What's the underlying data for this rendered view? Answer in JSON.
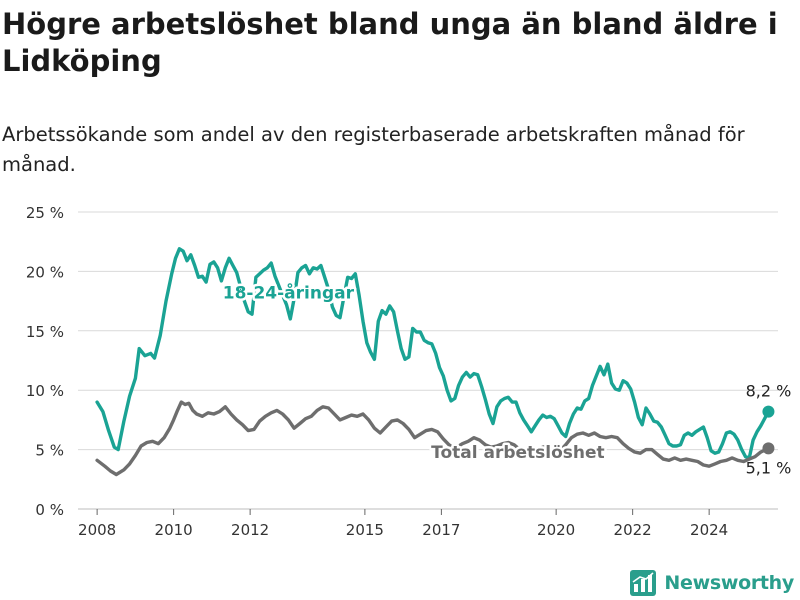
{
  "title": "Högre arbetslöshet bland unga än bland äldre i Lidköping",
  "subtitle": "Arbetssökande som andel av den registerbaserade arbetskraften månad för månad.",
  "brand": {
    "name": "Newsworthy",
    "color": "#2a9e8c"
  },
  "chart_data": {
    "type": "line",
    "ylim": [
      0,
      25
    ],
    "xlim": [
      2007.5,
      2025.8
    ],
    "grid": true,
    "y_ticks": [
      0,
      5,
      10,
      15,
      20,
      25
    ],
    "y_tick_labels": [
      "0 %",
      "5 %",
      "10 %",
      "15 %",
      "20 %",
      "25 %"
    ],
    "x_ticks": [
      2008,
      2010,
      2012,
      2015,
      2017,
      2020,
      2022,
      2024
    ],
    "x_tick_labels": [
      "2008",
      "2010",
      "2012",
      "2015",
      "2017",
      "2020",
      "2022",
      "2024"
    ],
    "series": [
      {
        "name": "18-24-åringar",
        "color": "#1aa394",
        "end_label": "8,2 %",
        "points": [
          [
            2008.0,
            9.0
          ],
          [
            2008.15,
            8.2
          ],
          [
            2008.3,
            6.6
          ],
          [
            2008.45,
            5.2
          ],
          [
            2008.55,
            5.0
          ],
          [
            2008.7,
            7.4
          ],
          [
            2008.85,
            9.5
          ],
          [
            2009.0,
            11.0
          ],
          [
            2009.1,
            13.5
          ],
          [
            2009.25,
            12.9
          ],
          [
            2009.4,
            13.1
          ],
          [
            2009.5,
            12.7
          ],
          [
            2009.65,
            14.6
          ],
          [
            2009.8,
            17.5
          ],
          [
            2009.95,
            19.8
          ],
          [
            2010.05,
            21.1
          ],
          [
            2010.15,
            21.9
          ],
          [
            2010.25,
            21.7
          ],
          [
            2010.35,
            20.9
          ],
          [
            2010.45,
            21.4
          ],
          [
            2010.55,
            20.5
          ],
          [
            2010.65,
            19.5
          ],
          [
            2010.75,
            19.6
          ],
          [
            2010.85,
            19.1
          ],
          [
            2010.95,
            20.6
          ],
          [
            2011.05,
            20.8
          ],
          [
            2011.15,
            20.3
          ],
          [
            2011.25,
            19.2
          ],
          [
            2011.35,
            20.3
          ],
          [
            2011.45,
            21.1
          ],
          [
            2011.55,
            20.5
          ],
          [
            2011.65,
            19.9
          ],
          [
            2011.75,
            18.7
          ],
          [
            2011.85,
            17.5
          ],
          [
            2011.95,
            16.6
          ],
          [
            2012.05,
            16.4
          ],
          [
            2012.15,
            19.5
          ],
          [
            2012.25,
            19.8
          ],
          [
            2012.35,
            20.1
          ],
          [
            2012.45,
            20.3
          ],
          [
            2012.55,
            20.7
          ],
          [
            2012.65,
            19.6
          ],
          [
            2012.75,
            18.8
          ],
          [
            2012.85,
            18.0
          ],
          [
            2012.95,
            17.2
          ],
          [
            2013.05,
            16.0
          ],
          [
            2013.15,
            17.7
          ],
          [
            2013.25,
            19.9
          ],
          [
            2013.35,
            20.3
          ],
          [
            2013.45,
            20.5
          ],
          [
            2013.55,
            19.8
          ],
          [
            2013.65,
            20.3
          ],
          [
            2013.75,
            20.2
          ],
          [
            2013.85,
            20.5
          ],
          [
            2013.95,
            19.5
          ],
          [
            2014.05,
            18.5
          ],
          [
            2014.15,
            17.0
          ],
          [
            2014.25,
            16.3
          ],
          [
            2014.35,
            16.1
          ],
          [
            2014.45,
            17.8
          ],
          [
            2014.55,
            19.5
          ],
          [
            2014.65,
            19.4
          ],
          [
            2014.75,
            19.8
          ],
          [
            2014.85,
            18.0
          ],
          [
            2014.95,
            15.8
          ],
          [
            2015.05,
            14.0
          ],
          [
            2015.15,
            13.2
          ],
          [
            2015.25,
            12.6
          ],
          [
            2015.35,
            15.8
          ],
          [
            2015.45,
            16.7
          ],
          [
            2015.55,
            16.4
          ],
          [
            2015.65,
            17.1
          ],
          [
            2015.75,
            16.6
          ],
          [
            2015.85,
            15.0
          ],
          [
            2015.95,
            13.5
          ],
          [
            2016.05,
            12.6
          ],
          [
            2016.15,
            12.8
          ],
          [
            2016.25,
            15.2
          ],
          [
            2016.35,
            14.9
          ],
          [
            2016.45,
            14.9
          ],
          [
            2016.55,
            14.2
          ],
          [
            2016.65,
            14.0
          ],
          [
            2016.75,
            13.9
          ],
          [
            2016.85,
            13.1
          ],
          [
            2016.95,
            11.9
          ],
          [
            2017.05,
            11.2
          ],
          [
            2017.15,
            10.0
          ],
          [
            2017.25,
            9.1
          ],
          [
            2017.35,
            9.3
          ],
          [
            2017.45,
            10.4
          ],
          [
            2017.55,
            11.1
          ],
          [
            2017.65,
            11.5
          ],
          [
            2017.75,
            11.1
          ],
          [
            2017.85,
            11.4
          ],
          [
            2017.95,
            11.3
          ],
          [
            2018.05,
            10.3
          ],
          [
            2018.15,
            9.2
          ],
          [
            2018.25,
            8.0
          ],
          [
            2018.35,
            7.2
          ],
          [
            2018.45,
            8.6
          ],
          [
            2018.55,
            9.1
          ],
          [
            2018.65,
            9.3
          ],
          [
            2018.75,
            9.4
          ],
          [
            2018.85,
            9.0
          ],
          [
            2018.95,
            9.0
          ],
          [
            2019.05,
            8.1
          ],
          [
            2019.15,
            7.5
          ],
          [
            2019.25,
            7.0
          ],
          [
            2019.35,
            6.5
          ],
          [
            2019.45,
            7.0
          ],
          [
            2019.55,
            7.5
          ],
          [
            2019.65,
            7.9
          ],
          [
            2019.75,
            7.7
          ],
          [
            2019.85,
            7.8
          ],
          [
            2019.95,
            7.6
          ],
          [
            2020.05,
            7.0
          ],
          [
            2020.15,
            6.4
          ],
          [
            2020.25,
            6.1
          ],
          [
            2020.35,
            7.2
          ],
          [
            2020.45,
            8.0
          ],
          [
            2020.55,
            8.5
          ],
          [
            2020.65,
            8.4
          ],
          [
            2020.75,
            9.1
          ],
          [
            2020.85,
            9.3
          ],
          [
            2020.95,
            10.4
          ],
          [
            2021.05,
            11.2
          ],
          [
            2021.15,
            12.0
          ],
          [
            2021.25,
            11.3
          ],
          [
            2021.35,
            12.2
          ],
          [
            2021.45,
            10.6
          ],
          [
            2021.55,
            10.1
          ],
          [
            2021.65,
            10.0
          ],
          [
            2021.75,
            10.8
          ],
          [
            2021.85,
            10.6
          ],
          [
            2021.95,
            10.1
          ],
          [
            2022.05,
            9.0
          ],
          [
            2022.15,
            7.7
          ],
          [
            2022.25,
            7.1
          ],
          [
            2022.35,
            8.5
          ],
          [
            2022.45,
            8.0
          ],
          [
            2022.55,
            7.4
          ],
          [
            2022.65,
            7.3
          ],
          [
            2022.75,
            6.9
          ],
          [
            2022.85,
            6.2
          ],
          [
            2022.95,
            5.5
          ],
          [
            2023.05,
            5.3
          ],
          [
            2023.15,
            5.3
          ],
          [
            2023.25,
            5.4
          ],
          [
            2023.35,
            6.2
          ],
          [
            2023.45,
            6.4
          ],
          [
            2023.55,
            6.2
          ],
          [
            2023.65,
            6.5
          ],
          [
            2023.75,
            6.7
          ],
          [
            2023.85,
            6.9
          ],
          [
            2023.95,
            6.0
          ],
          [
            2024.05,
            4.9
          ],
          [
            2024.15,
            4.7
          ],
          [
            2024.25,
            4.8
          ],
          [
            2024.35,
            5.5
          ],
          [
            2024.45,
            6.4
          ],
          [
            2024.55,
            6.5
          ],
          [
            2024.65,
            6.3
          ],
          [
            2024.75,
            5.8
          ],
          [
            2024.85,
            5.0
          ],
          [
            2024.95,
            4.4
          ],
          [
            2025.05,
            4.3
          ],
          [
            2025.15,
            5.8
          ],
          [
            2025.25,
            6.5
          ],
          [
            2025.35,
            7.0
          ],
          [
            2025.45,
            7.6
          ],
          [
            2025.55,
            8.2
          ]
        ]
      },
      {
        "name": "Total arbetslöshet",
        "color": "#6e6e6e",
        "end_label": "5,1 %",
        "points": [
          [
            2008.0,
            4.1
          ],
          [
            2008.2,
            3.6
          ],
          [
            2008.35,
            3.2
          ],
          [
            2008.5,
            2.9
          ],
          [
            2008.7,
            3.3
          ],
          [
            2008.85,
            3.8
          ],
          [
            2009.0,
            4.5
          ],
          [
            2009.15,
            5.3
          ],
          [
            2009.3,
            5.6
          ],
          [
            2009.45,
            5.7
          ],
          [
            2009.6,
            5.5
          ],
          [
            2009.75,
            6.0
          ],
          [
            2009.9,
            6.8
          ],
          [
            2010.0,
            7.5
          ],
          [
            2010.1,
            8.3
          ],
          [
            2010.2,
            9.0
          ],
          [
            2010.3,
            8.8
          ],
          [
            2010.4,
            8.9
          ],
          [
            2010.5,
            8.3
          ],
          [
            2010.6,
            8.0
          ],
          [
            2010.75,
            7.8
          ],
          [
            2010.9,
            8.1
          ],
          [
            2011.05,
            8.0
          ],
          [
            2011.2,
            8.2
          ],
          [
            2011.35,
            8.6
          ],
          [
            2011.5,
            8.0
          ],
          [
            2011.65,
            7.5
          ],
          [
            2011.8,
            7.1
          ],
          [
            2011.95,
            6.6
          ],
          [
            2012.1,
            6.7
          ],
          [
            2012.25,
            7.4
          ],
          [
            2012.4,
            7.8
          ],
          [
            2012.55,
            8.1
          ],
          [
            2012.7,
            8.3
          ],
          [
            2012.85,
            8.0
          ],
          [
            2013.0,
            7.5
          ],
          [
            2013.15,
            6.8
          ],
          [
            2013.3,
            7.2
          ],
          [
            2013.45,
            7.6
          ],
          [
            2013.6,
            7.8
          ],
          [
            2013.75,
            8.3
          ],
          [
            2013.9,
            8.6
          ],
          [
            2014.05,
            8.5
          ],
          [
            2014.2,
            8.0
          ],
          [
            2014.35,
            7.5
          ],
          [
            2014.5,
            7.7
          ],
          [
            2014.65,
            7.9
          ],
          [
            2014.8,
            7.8
          ],
          [
            2014.95,
            8.0
          ],
          [
            2015.1,
            7.5
          ],
          [
            2015.25,
            6.8
          ],
          [
            2015.4,
            6.4
          ],
          [
            2015.55,
            6.9
          ],
          [
            2015.7,
            7.4
          ],
          [
            2015.85,
            7.5
          ],
          [
            2016.0,
            7.2
          ],
          [
            2016.15,
            6.7
          ],
          [
            2016.3,
            6.0
          ],
          [
            2016.45,
            6.3
          ],
          [
            2016.6,
            6.6
          ],
          [
            2016.75,
            6.7
          ],
          [
            2016.9,
            6.5
          ],
          [
            2017.05,
            5.9
          ],
          [
            2017.2,
            5.4
          ],
          [
            2017.35,
            5.1
          ],
          [
            2017.55,
            5.5
          ],
          [
            2017.7,
            5.7
          ],
          [
            2017.85,
            6.0
          ],
          [
            2018.0,
            5.8
          ],
          [
            2018.15,
            5.4
          ],
          [
            2018.3,
            5.2
          ],
          [
            2018.45,
            5.3
          ],
          [
            2018.6,
            5.5
          ],
          [
            2018.75,
            5.6
          ],
          [
            2018.9,
            5.4
          ],
          [
            2019.05,
            5.0
          ],
          [
            2019.2,
            4.8
          ],
          [
            2019.35,
            4.9
          ],
          [
            2019.5,
            5.0
          ],
          [
            2019.65,
            5.2
          ],
          [
            2019.8,
            5.3
          ],
          [
            2019.95,
            5.1
          ],
          [
            2020.1,
            4.9
          ],
          [
            2020.25,
            5.4
          ],
          [
            2020.4,
            6.0
          ],
          [
            2020.55,
            6.3
          ],
          [
            2020.7,
            6.4
          ],
          [
            2020.85,
            6.2
          ],
          [
            2021.0,
            6.4
          ],
          [
            2021.15,
            6.1
          ],
          [
            2021.3,
            6.0
          ],
          [
            2021.45,
            6.1
          ],
          [
            2021.6,
            6.0
          ],
          [
            2021.75,
            5.5
          ],
          [
            2021.9,
            5.1
          ],
          [
            2022.05,
            4.8
          ],
          [
            2022.2,
            4.7
          ],
          [
            2022.35,
            5.0
          ],
          [
            2022.5,
            5.0
          ],
          [
            2022.65,
            4.6
          ],
          [
            2022.8,
            4.2
          ],
          [
            2022.95,
            4.1
          ],
          [
            2023.1,
            4.3
          ],
          [
            2023.25,
            4.1
          ],
          [
            2023.4,
            4.2
          ],
          [
            2023.55,
            4.1
          ],
          [
            2023.7,
            4.0
          ],
          [
            2023.85,
            3.7
          ],
          [
            2024.0,
            3.6
          ],
          [
            2024.15,
            3.8
          ],
          [
            2024.3,
            4.0
          ],
          [
            2024.45,
            4.1
          ],
          [
            2024.6,
            4.3
          ],
          [
            2024.75,
            4.1
          ],
          [
            2024.9,
            4.0
          ],
          [
            2025.05,
            4.2
          ],
          [
            2025.2,
            4.4
          ],
          [
            2025.35,
            4.8
          ],
          [
            2025.55,
            5.1
          ]
        ]
      }
    ]
  }
}
